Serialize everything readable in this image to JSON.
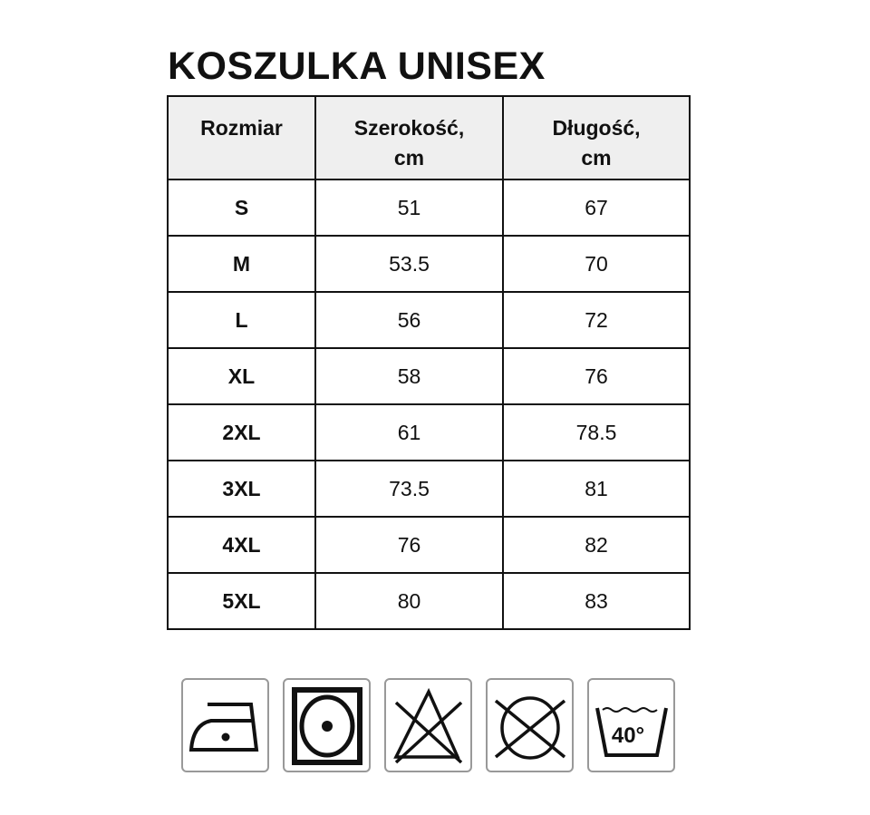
{
  "title": "KOSZULKA UNISEX",
  "table": {
    "headers": [
      "Rozmiar",
      "Szerokość,\ncm",
      "Długość,\ncm"
    ],
    "header_lines": [
      [
        "Rozmiar"
      ],
      [
        "Szerokość,",
        "cm"
      ],
      [
        "Długość,",
        "cm"
      ]
    ],
    "rows": [
      [
        "S",
        "51",
        "67"
      ],
      [
        "M",
        "53.5",
        "70"
      ],
      [
        "L",
        "56",
        "72"
      ],
      [
        "XL",
        "58",
        "76"
      ],
      [
        "2XL",
        "61",
        "78.5"
      ],
      [
        "3XL",
        "73.5",
        "81"
      ],
      [
        "4XL",
        "76",
        "82"
      ],
      [
        "5XL",
        "80",
        "83"
      ]
    ]
  },
  "care_icons": [
    {
      "name": "iron-low-temperature-icon"
    },
    {
      "name": "tumble-dry-icon"
    },
    {
      "name": "do-not-bleach-icon"
    },
    {
      "name": "do-not-dry-clean-icon"
    },
    {
      "name": "wash-40-icon",
      "label": "40°"
    }
  ]
}
